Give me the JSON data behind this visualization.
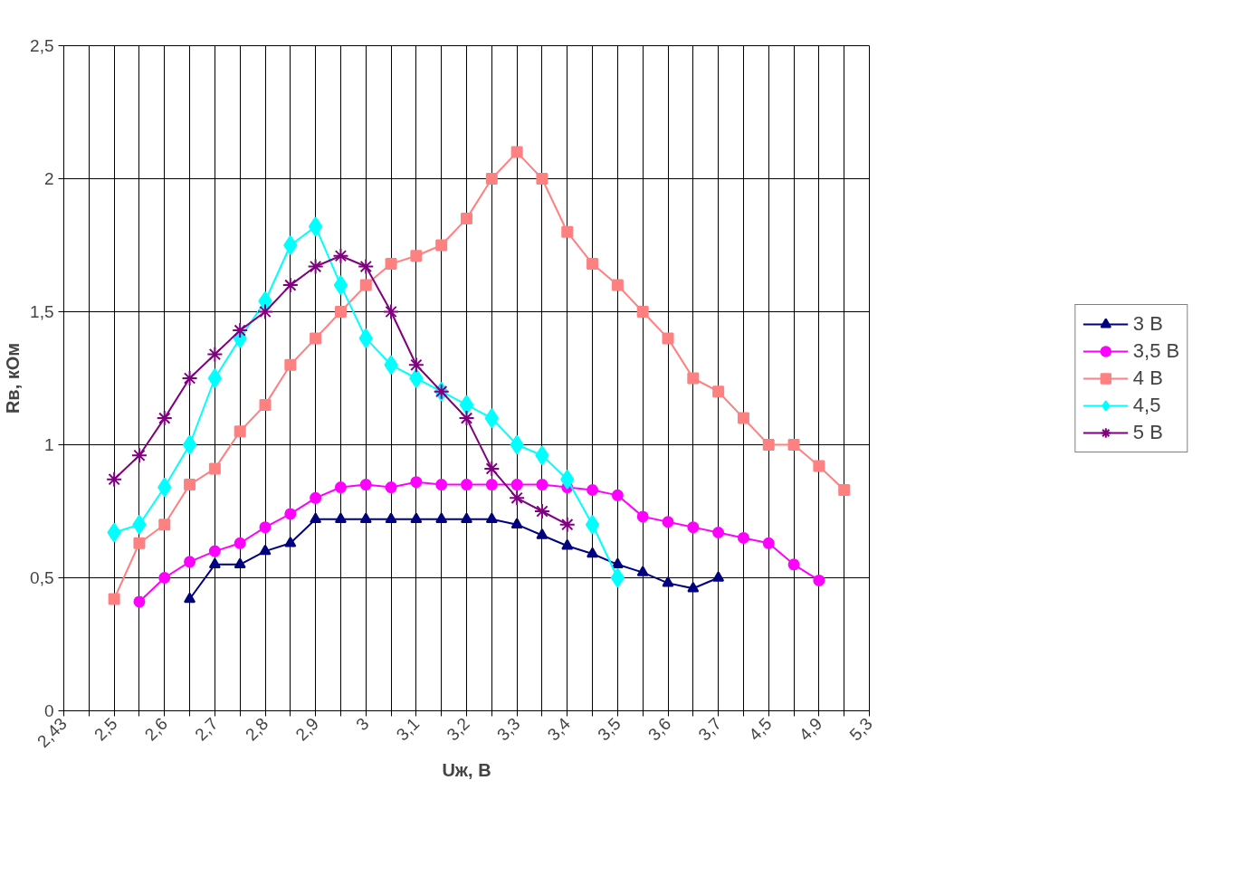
{
  "chart_data": {
    "type": "line",
    "xlabel": "Uж, В",
    "ylabel": "Rв, кОм",
    "categories": [
      "2,43",
      null,
      "2,5",
      null,
      "2,6",
      null,
      "2,7",
      null,
      "2,8",
      null,
      "2,9",
      null,
      "3",
      null,
      "3,1",
      null,
      "3,2",
      null,
      "3,3",
      null,
      "3,4",
      null,
      "3,5",
      null,
      "3,6",
      null,
      "3,7",
      null,
      "4,5",
      null,
      "4,9",
      null,
      "5,3"
    ],
    "ylim": [
      0,
      2.5
    ],
    "yticks": [
      0,
      {
        "value": 0.5,
        "label": "0,5"
      },
      1,
      {
        "value": 1.5,
        "label": "1,5"
      },
      2,
      {
        "value": 2.5,
        "label": "2,5"
      }
    ],
    "grid": true,
    "legend": "right",
    "series": [
      {
        "name": "3 В",
        "color": "#000080",
        "marker": "triangle",
        "values": [
          null,
          null,
          null,
          null,
          null,
          0.42,
          0.55,
          0.55,
          0.6,
          0.63,
          0.72,
          0.72,
          0.72,
          0.72,
          0.72,
          0.72,
          0.72,
          0.72,
          0.7,
          0.66,
          0.62,
          0.59,
          0.55,
          0.52,
          0.48,
          0.46,
          0.5,
          null,
          null,
          null,
          null,
          null,
          null
        ]
      },
      {
        "name": "3,5 В",
        "color": "#ff00ff",
        "marker": "circle",
        "values": [
          null,
          null,
          null,
          0.41,
          0.5,
          0.56,
          0.6,
          0.63,
          0.69,
          0.74,
          0.8,
          0.84,
          0.85,
          0.84,
          0.86,
          0.85,
          0.85,
          0.85,
          0.85,
          0.85,
          0.84,
          0.83,
          0.81,
          0.73,
          0.71,
          0.69,
          0.67,
          0.65,
          0.63,
          0.55,
          0.49,
          null,
          null
        ]
      },
      {
        "name": "4 В",
        "color": "#ff8080",
        "marker": "square",
        "values": [
          null,
          null,
          0.42,
          0.63,
          0.7,
          0.85,
          0.91,
          1.05,
          1.15,
          1.3,
          1.4,
          1.5,
          1.6,
          1.68,
          1.71,
          1.75,
          1.85,
          2.0,
          2.1,
          2.0,
          1.8,
          1.68,
          1.6,
          1.5,
          1.4,
          1.25,
          1.2,
          1.1,
          1.0,
          1.0,
          0.92,
          0.83,
          null
        ]
      },
      {
        "name": "4,5",
        "color": "#00ffff",
        "marker": "diamond",
        "values": [
          null,
          null,
          0.67,
          0.7,
          0.84,
          1.0,
          1.25,
          1.4,
          1.54,
          1.75,
          1.82,
          1.6,
          1.4,
          1.3,
          1.25,
          1.2,
          1.15,
          1.1,
          1.0,
          0.96,
          0.87,
          0.7,
          0.5,
          null,
          null,
          null,
          null,
          null,
          null,
          null,
          null,
          null,
          null
        ]
      },
      {
        "name": "5 В",
        "color": "#800080",
        "marker": "cross",
        "values": [
          null,
          null,
          0.87,
          0.96,
          1.1,
          1.25,
          1.34,
          1.43,
          1.5,
          1.6,
          1.67,
          1.71,
          1.67,
          1.5,
          1.3,
          1.2,
          1.1,
          0.91,
          0.8,
          0.75,
          0.7,
          null,
          null,
          null,
          null,
          null,
          null,
          null,
          null,
          null,
          null,
          null,
          null
        ]
      }
    ]
  }
}
